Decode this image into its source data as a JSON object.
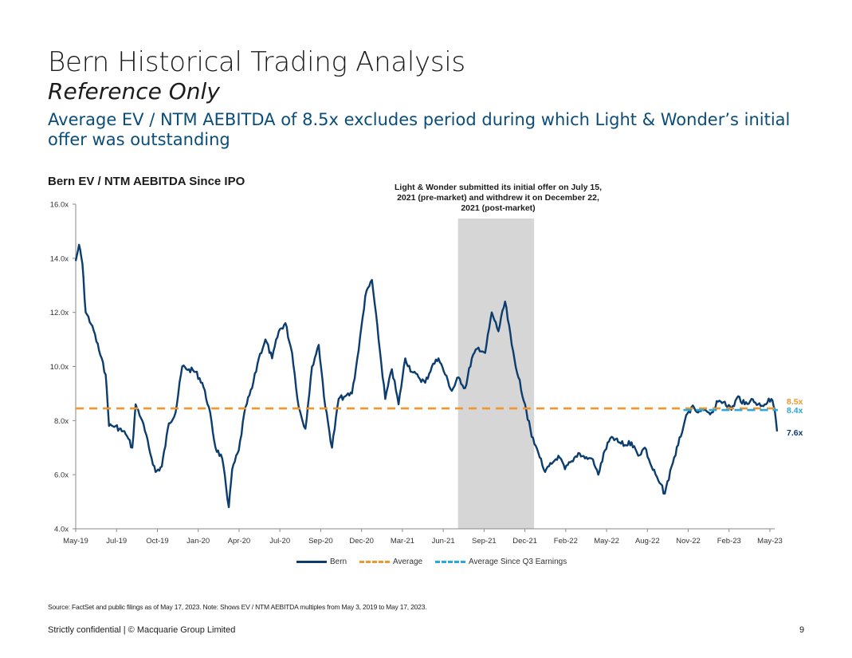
{
  "header": {
    "title": "Bern Historical Trading Analysis",
    "subtitle": "Reference Only",
    "headline": "Average EV / NTM AEBITDA of 8.5x excludes period during which Light & Wonder’s initial offer was outstanding"
  },
  "chart_data": {
    "type": "line",
    "title": "Bern EV / NTM AEBITDA Since IPO",
    "annotation": "Light & Wonder submitted its initial offer on July 15, 2021 (pre-market) and withdrew it on December 22, 2021 (post-market)",
    "ylim": [
      4.0,
      16.0
    ],
    "y_ticks": [
      "4.0x",
      "6.0x",
      "8.0x",
      "10.0x",
      "12.0x",
      "14.0x",
      "16.0x"
    ],
    "x_ticks": [
      "May-19",
      "Jul-19",
      "Oct-19",
      "Jan-20",
      "Apr-20",
      "Jul-20",
      "Sep-20",
      "Dec-20",
      "Mar-21",
      "Jun-21",
      "Sep-21",
      "Dec-21",
      "Feb-22",
      "May-22",
      "Aug-22",
      "Nov-22",
      "Feb-23",
      "May-23"
    ],
    "shaded_period": [
      "2021-07-15",
      "2021-12-22"
    ],
    "series": [
      {
        "name": "Bern",
        "color": "#0b3d6e",
        "points": [
          [
            "2019-05-03",
            13.9
          ],
          [
            "2019-05-10",
            14.5
          ],
          [
            "2019-05-17",
            13.8
          ],
          [
            "2019-05-24",
            12.0
          ],
          [
            "2019-06-07",
            11.5
          ],
          [
            "2019-06-21",
            10.6
          ],
          [
            "2019-07-05",
            9.7
          ],
          [
            "2019-07-12",
            7.8
          ],
          [
            "2019-07-26",
            7.8
          ],
          [
            "2019-08-16",
            7.5
          ],
          [
            "2019-08-30",
            7.0
          ],
          [
            "2019-09-06",
            8.6
          ],
          [
            "2019-09-20",
            8.0
          ],
          [
            "2019-10-04",
            7.0
          ],
          [
            "2019-10-18",
            6.1
          ],
          [
            "2019-10-31",
            6.3
          ],
          [
            "2019-11-15",
            7.9
          ],
          [
            "2019-11-29",
            8.3
          ],
          [
            "2019-12-13",
            10.0
          ],
          [
            "2019-12-27",
            9.9
          ],
          [
            "2020-01-10",
            9.8
          ],
          [
            "2020-01-24",
            9.4
          ],
          [
            "2020-02-07",
            8.5
          ],
          [
            "2020-02-21",
            7.0
          ],
          [
            "2020-03-06",
            6.6
          ],
          [
            "2020-03-20",
            4.8
          ],
          [
            "2020-03-27",
            6.2
          ],
          [
            "2020-04-10",
            6.9
          ],
          [
            "2020-04-24",
            8.5
          ],
          [
            "2020-05-08",
            9.2
          ],
          [
            "2020-05-22",
            10.3
          ],
          [
            "2020-06-05",
            11.0
          ],
          [
            "2020-06-19",
            10.3
          ],
          [
            "2020-07-03",
            11.3
          ],
          [
            "2020-07-17",
            11.6
          ],
          [
            "2020-07-31",
            10.5
          ],
          [
            "2020-08-14",
            8.5
          ],
          [
            "2020-08-28",
            7.7
          ],
          [
            "2020-09-11",
            10.0
          ],
          [
            "2020-09-25",
            10.8
          ],
          [
            "2020-10-09",
            8.5
          ],
          [
            "2020-10-23",
            7.0
          ],
          [
            "2020-11-06",
            8.8
          ],
          [
            "2020-11-20",
            8.9
          ],
          [
            "2020-12-04",
            9.0
          ],
          [
            "2020-12-18",
            10.6
          ],
          [
            "2021-01-01",
            12.6
          ],
          [
            "2021-01-15",
            13.2
          ],
          [
            "2021-01-29",
            11.0
          ],
          [
            "2021-02-12",
            8.8
          ],
          [
            "2021-02-26",
            9.9
          ],
          [
            "2021-03-12",
            8.6
          ],
          [
            "2021-03-26",
            10.3
          ],
          [
            "2021-04-09",
            9.8
          ],
          [
            "2021-04-23",
            9.6
          ],
          [
            "2021-05-07",
            9.4
          ],
          [
            "2021-05-21",
            10.0
          ],
          [
            "2021-06-04",
            10.3
          ],
          [
            "2021-06-18",
            9.7
          ],
          [
            "2021-07-02",
            9.1
          ],
          [
            "2021-07-16",
            9.6
          ],
          [
            "2021-07-30",
            9.2
          ],
          [
            "2021-08-13",
            10.3
          ],
          [
            "2021-08-27",
            10.7
          ],
          [
            "2021-09-10",
            10.5
          ],
          [
            "2021-09-24",
            12.0
          ],
          [
            "2021-10-08",
            11.3
          ],
          [
            "2021-10-22",
            12.4
          ],
          [
            "2021-11-05",
            10.8
          ],
          [
            "2021-11-19",
            9.6
          ],
          [
            "2021-12-03",
            8.6
          ],
          [
            "2021-12-17",
            7.4
          ],
          [
            "2021-12-31",
            6.8
          ],
          [
            "2022-01-14",
            6.1
          ],
          [
            "2022-01-28",
            6.4
          ],
          [
            "2022-02-11",
            6.7
          ],
          [
            "2022-02-25",
            6.2
          ],
          [
            "2022-03-11",
            6.5
          ],
          [
            "2022-03-25",
            6.8
          ],
          [
            "2022-04-08",
            6.6
          ],
          [
            "2022-04-22",
            6.6
          ],
          [
            "2022-05-06",
            6.0
          ],
          [
            "2022-05-20",
            6.9
          ],
          [
            "2022-06-03",
            7.4
          ],
          [
            "2022-06-17",
            7.2
          ],
          [
            "2022-07-01",
            7.1
          ],
          [
            "2022-07-15",
            7.2
          ],
          [
            "2022-07-29",
            6.7
          ],
          [
            "2022-08-12",
            7.0
          ],
          [
            "2022-08-26",
            6.3
          ],
          [
            "2022-09-09",
            5.8
          ],
          [
            "2022-09-23",
            5.3
          ],
          [
            "2022-10-07",
            6.3
          ],
          [
            "2022-10-21",
            7.1
          ],
          [
            "2022-11-04",
            8.0
          ],
          [
            "2022-11-18",
            8.5
          ],
          [
            "2022-12-02",
            8.3
          ],
          [
            "2022-12-16",
            8.4
          ],
          [
            "2022-12-30",
            8.3
          ],
          [
            "2023-01-13",
            8.7
          ],
          [
            "2023-01-27",
            8.7
          ],
          [
            "2023-02-10",
            8.4
          ],
          [
            "2023-02-24",
            8.9
          ],
          [
            "2023-03-10",
            8.6
          ],
          [
            "2023-03-24",
            8.8
          ],
          [
            "2023-04-07",
            8.6
          ],
          [
            "2023-04-21",
            8.6
          ],
          [
            "2023-05-05",
            8.8
          ],
          [
            "2023-05-12",
            8.4
          ],
          [
            "2023-05-17",
            7.6
          ]
        ],
        "end_label": "7.6x"
      },
      {
        "name": "Average",
        "color": "#f0962b",
        "value": 8.45,
        "end_label": "8.5x"
      },
      {
        "name": "Average Since Q3 Earnings",
        "color": "#29a8e0",
        "start": "2022-11-01",
        "value": 8.45,
        "end_label": "8.4x"
      }
    ]
  },
  "footer": {
    "source": "Source: FactSet and public filings as of May 17, 2023. Note: Shows EV / NTM AEBITDA multiples from May 3, 2019 to May 17, 2023.",
    "confidential": "Strictly confidential | © Macquarie Group Limited",
    "page_number": "9"
  }
}
